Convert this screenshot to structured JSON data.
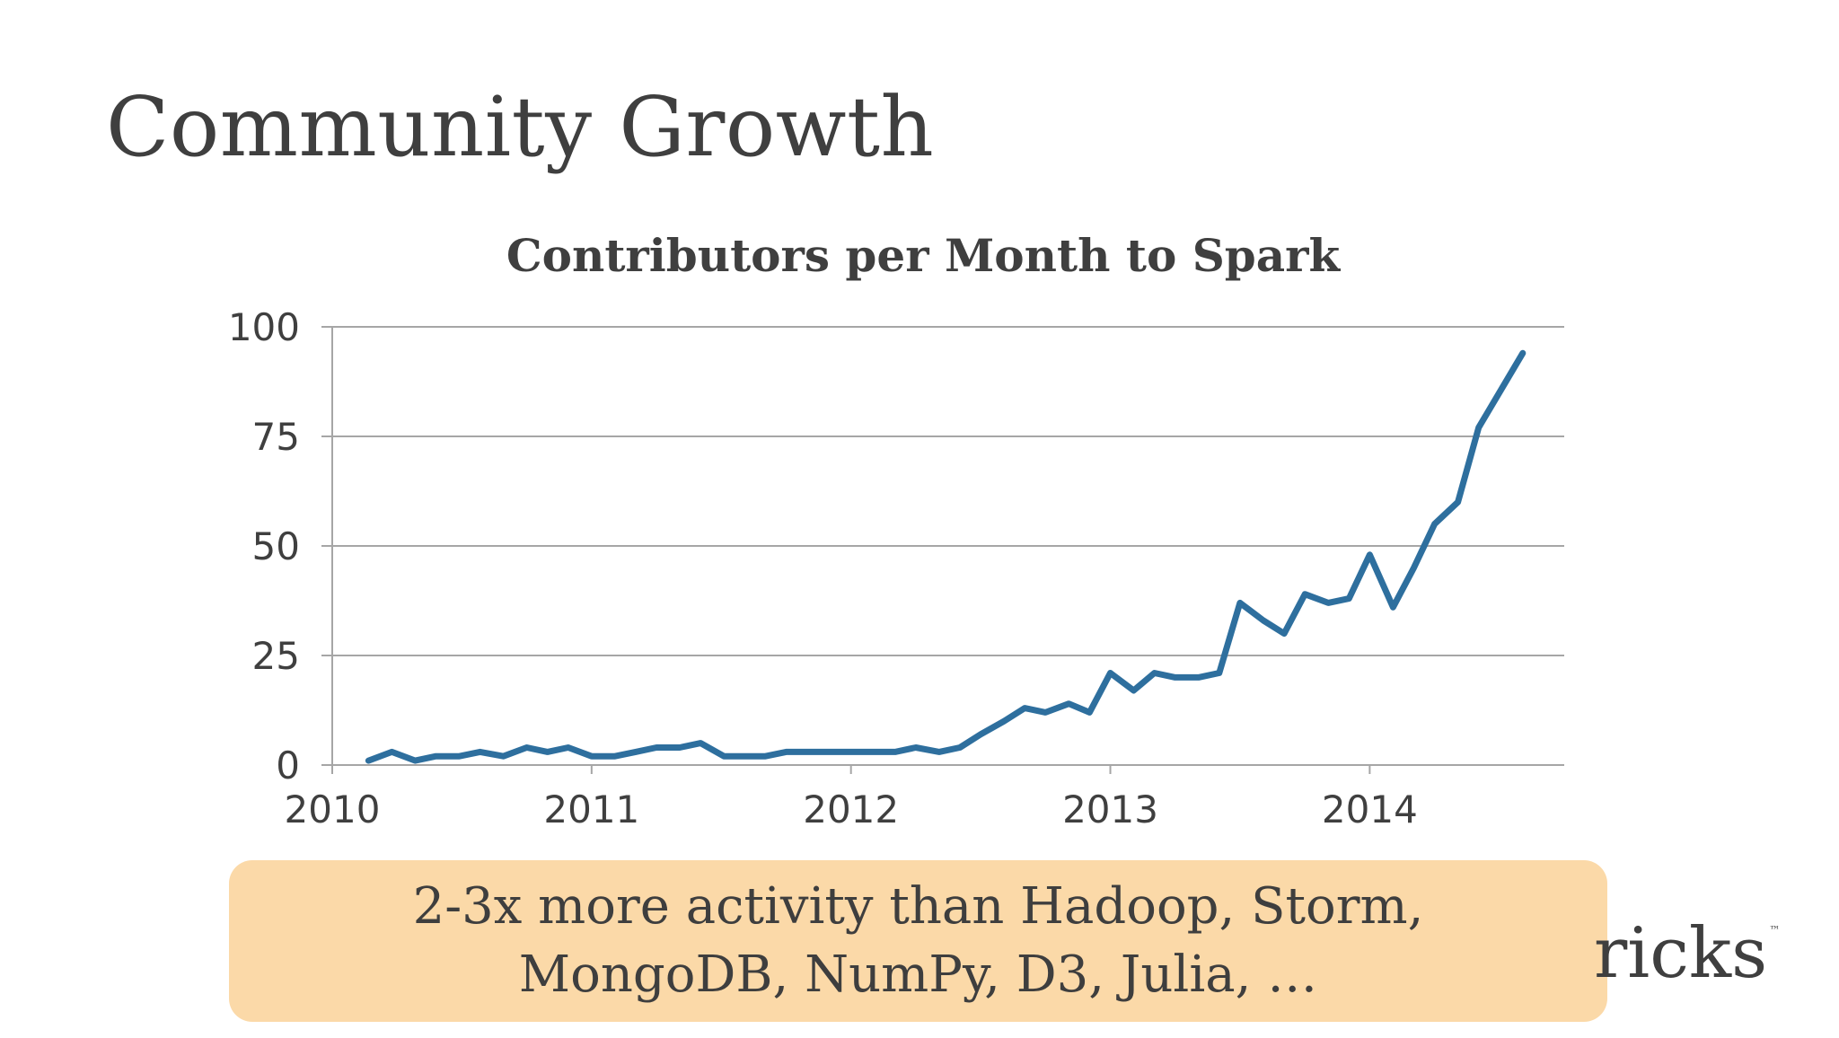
{
  "slide": {
    "title": "Community Growth",
    "callout": {
      "line1": "2-3x more activity than Hadoop, Storm,",
      "line2": "MongoDB, NumPy, D3, Julia, …"
    },
    "logo_text": "ricks",
    "logo_tm": "™"
  },
  "colors": {
    "line": "#2e6f9e",
    "grid": "#a6a6a6",
    "text": "#3f3f3f",
    "callout_bg": "#fbd9a8"
  },
  "chart_data": {
    "type": "line",
    "title": "Contributors per Month to Spark",
    "xlabel": "",
    "ylabel": "",
    "x_ticks": [
      "2010",
      "2011",
      "2012",
      "2013",
      "2014"
    ],
    "y_ticks": [
      "0",
      "25",
      "50",
      "75",
      "100"
    ],
    "xlim": [
      2010,
      2014.75
    ],
    "ylim": [
      0,
      100
    ],
    "grid": "horizontal",
    "series": [
      {
        "x": [
          2010.14,
          2010.23,
          2010.32,
          2010.4,
          2010.49,
          2010.57,
          2010.66,
          2010.75,
          2010.83,
          2010.91,
          2011.0,
          2011.09,
          2011.17,
          2011.25,
          2011.34,
          2011.42,
          2011.51,
          2011.59,
          2011.67,
          2011.75,
          2011.84,
          2011.92,
          2012.0,
          2012.09,
          2012.17,
          2012.25,
          2012.34,
          2012.42,
          2012.5,
          2012.59,
          2012.67,
          2012.75,
          2012.84,
          2012.92,
          2013.0,
          2013.09,
          2013.17,
          2013.25,
          2013.34,
          2013.42,
          2013.5,
          2013.59,
          2013.67,
          2013.75,
          2013.84,
          2013.92,
          2014.0,
          2014.09,
          2014.17,
          2014.25,
          2014.34,
          2014.42,
          2014.51,
          2014.59
        ],
        "values": [
          1,
          3,
          1,
          2,
          2,
          3,
          2,
          4,
          3,
          4,
          2,
          2,
          3,
          4,
          4,
          5,
          2,
          2,
          2,
          3,
          3,
          3,
          3,
          3,
          3,
          4,
          3,
          4,
          7,
          10,
          13,
          12,
          14,
          12,
          21,
          17,
          21,
          20,
          20,
          21,
          37,
          33,
          30,
          39,
          37,
          38,
          48,
          36,
          45,
          55,
          60,
          77,
          86,
          94
        ]
      }
    ]
  }
}
